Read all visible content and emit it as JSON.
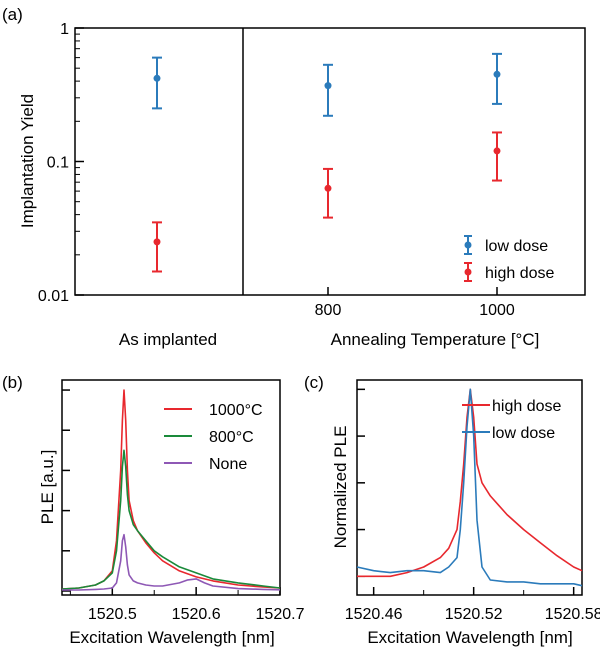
{
  "chart_data": [
    {
      "panel": "(a)",
      "type": "scatter",
      "ylabel": "Implantation Yield",
      "yscale": "log",
      "ylim": [
        0.01,
        1
      ],
      "yticks": [
        "1",
        "0.1",
        "0.01"
      ],
      "left_section_label": "As implanted",
      "right_section_label": "Annealing Temperature [°C]",
      "xticks": [
        "800",
        "1000"
      ],
      "legend": {
        "placement": "bottom-right"
      },
      "series": [
        {
          "name": "low dose",
          "color": "#2b7bbb",
          "points": [
            {
              "x": "As implanted",
              "y": 0.42,
              "ylow": 0.25,
              "yhigh": 0.6
            },
            {
              "x": "800",
              "y": 0.37,
              "ylow": 0.22,
              "yhigh": 0.53
            },
            {
              "x": "1000",
              "y": 0.45,
              "ylow": 0.27,
              "yhigh": 0.64
            }
          ]
        },
        {
          "name": "high dose",
          "color": "#e8282e",
          "points": [
            {
              "x": "As implanted",
              "y": 0.025,
              "ylow": 0.015,
              "yhigh": 0.035
            },
            {
              "x": "800",
              "y": 0.063,
              "ylow": 0.038,
              "yhigh": 0.088
            },
            {
              "x": "1000",
              "y": 0.12,
              "ylow": 0.072,
              "yhigh": 0.165
            }
          ]
        }
      ]
    },
    {
      "panel": "(b)",
      "type": "line",
      "xlabel": "Excitation Wavelength [nm]",
      "ylabel": "PLE [a.u.]",
      "xlim": [
        1520.44,
        1520.7
      ],
      "xticks": [
        "1520.5",
        "1520.6",
        "1520.7"
      ],
      "legend": {
        "placement": "top-right"
      },
      "series": [
        {
          "name": "1000°C",
          "color": "#e8282e",
          "x": [
            1520.44,
            1520.46,
            1520.48,
            1520.49,
            1520.5,
            1520.505,
            1520.51,
            1520.512,
            1520.514,
            1520.516,
            1520.518,
            1520.52,
            1520.525,
            1520.53,
            1520.54,
            1520.55,
            1520.56,
            1520.58,
            1520.6,
            1520.62,
            1520.65,
            1520.68,
            1520.7
          ],
          "y": [
            0.01,
            0.015,
            0.03,
            0.05,
            0.1,
            0.25,
            0.6,
            0.85,
            1.0,
            0.85,
            0.6,
            0.45,
            0.35,
            0.3,
            0.24,
            0.19,
            0.15,
            0.1,
            0.07,
            0.05,
            0.03,
            0.02,
            0.015
          ]
        },
        {
          "name": "800°C",
          "color": "#1a8a3a",
          "x": [
            1520.44,
            1520.46,
            1520.48,
            1520.49,
            1520.5,
            1520.505,
            1520.51,
            1520.512,
            1520.514,
            1520.516,
            1520.518,
            1520.52,
            1520.525,
            1520.53,
            1520.54,
            1520.55,
            1520.56,
            1520.58,
            1520.6,
            1520.62,
            1520.65,
            1520.68,
            1520.7
          ],
          "y": [
            0.01,
            0.015,
            0.03,
            0.05,
            0.09,
            0.2,
            0.45,
            0.62,
            0.7,
            0.62,
            0.48,
            0.4,
            0.33,
            0.3,
            0.25,
            0.2,
            0.17,
            0.12,
            0.09,
            0.06,
            0.04,
            0.025,
            0.015
          ]
        },
        {
          "name": "None",
          "color": "#8e58b5",
          "x": [
            1520.44,
            1520.46,
            1520.48,
            1520.49,
            1520.5,
            1520.505,
            1520.51,
            1520.512,
            1520.514,
            1520.516,
            1520.518,
            1520.52,
            1520.525,
            1520.53,
            1520.54,
            1520.55,
            1520.56,
            1520.58,
            1520.59,
            1520.6,
            1520.61,
            1520.62,
            1520.65,
            1520.68,
            1520.7
          ],
          "y": [
            0.005,
            0.005,
            0.008,
            0.01,
            0.015,
            0.04,
            0.15,
            0.25,
            0.28,
            0.22,
            0.13,
            0.08,
            0.05,
            0.04,
            0.03,
            0.025,
            0.025,
            0.04,
            0.055,
            0.06,
            0.04,
            0.025,
            0.012,
            0.008,
            0.006
          ]
        }
      ]
    },
    {
      "panel": "(c)",
      "type": "line",
      "xlabel": "Excitation Wavelength [nm]",
      "ylabel": "Normalized PLE",
      "xlim": [
        1520.45,
        1520.585
      ],
      "xticks": [
        "1520.46",
        "1520.52",
        "1520.58"
      ],
      "legend": {
        "placement": "top-right"
      },
      "series": [
        {
          "name": "high dose",
          "color": "#e8282e",
          "x": [
            1520.45,
            1520.46,
            1520.47,
            1520.48,
            1520.49,
            1520.5,
            1520.505,
            1520.51,
            1520.512,
            1520.514,
            1520.516,
            1520.518,
            1520.52,
            1520.522,
            1520.525,
            1520.53,
            1520.535,
            1520.54,
            1520.55,
            1520.56,
            1520.57,
            1520.58,
            1520.585
          ],
          "y": [
            0.0,
            0.0,
            0.0,
            0.02,
            0.05,
            0.1,
            0.15,
            0.25,
            0.4,
            0.6,
            0.85,
            1.0,
            0.85,
            0.6,
            0.5,
            0.43,
            0.38,
            0.33,
            0.25,
            0.18,
            0.11,
            0.05,
            0.03
          ]
        },
        {
          "name": "low dose",
          "color": "#2b7bbb",
          "x": [
            1520.45,
            1520.46,
            1520.47,
            1520.48,
            1520.49,
            1520.5,
            1520.505,
            1520.51,
            1520.512,
            1520.514,
            1520.516,
            1520.518,
            1520.52,
            1520.522,
            1520.525,
            1520.53,
            1520.54,
            1520.55,
            1520.56,
            1520.57,
            1520.58,
            1520.585
          ],
          "y": [
            0.05,
            0.03,
            0.02,
            0.03,
            0.03,
            0.02,
            0.05,
            0.1,
            0.25,
            0.5,
            0.8,
            1.0,
            0.75,
            0.3,
            0.05,
            -0.02,
            -0.03,
            -0.03,
            -0.04,
            -0.04,
            -0.04,
            -0.05
          ]
        }
      ]
    }
  ]
}
